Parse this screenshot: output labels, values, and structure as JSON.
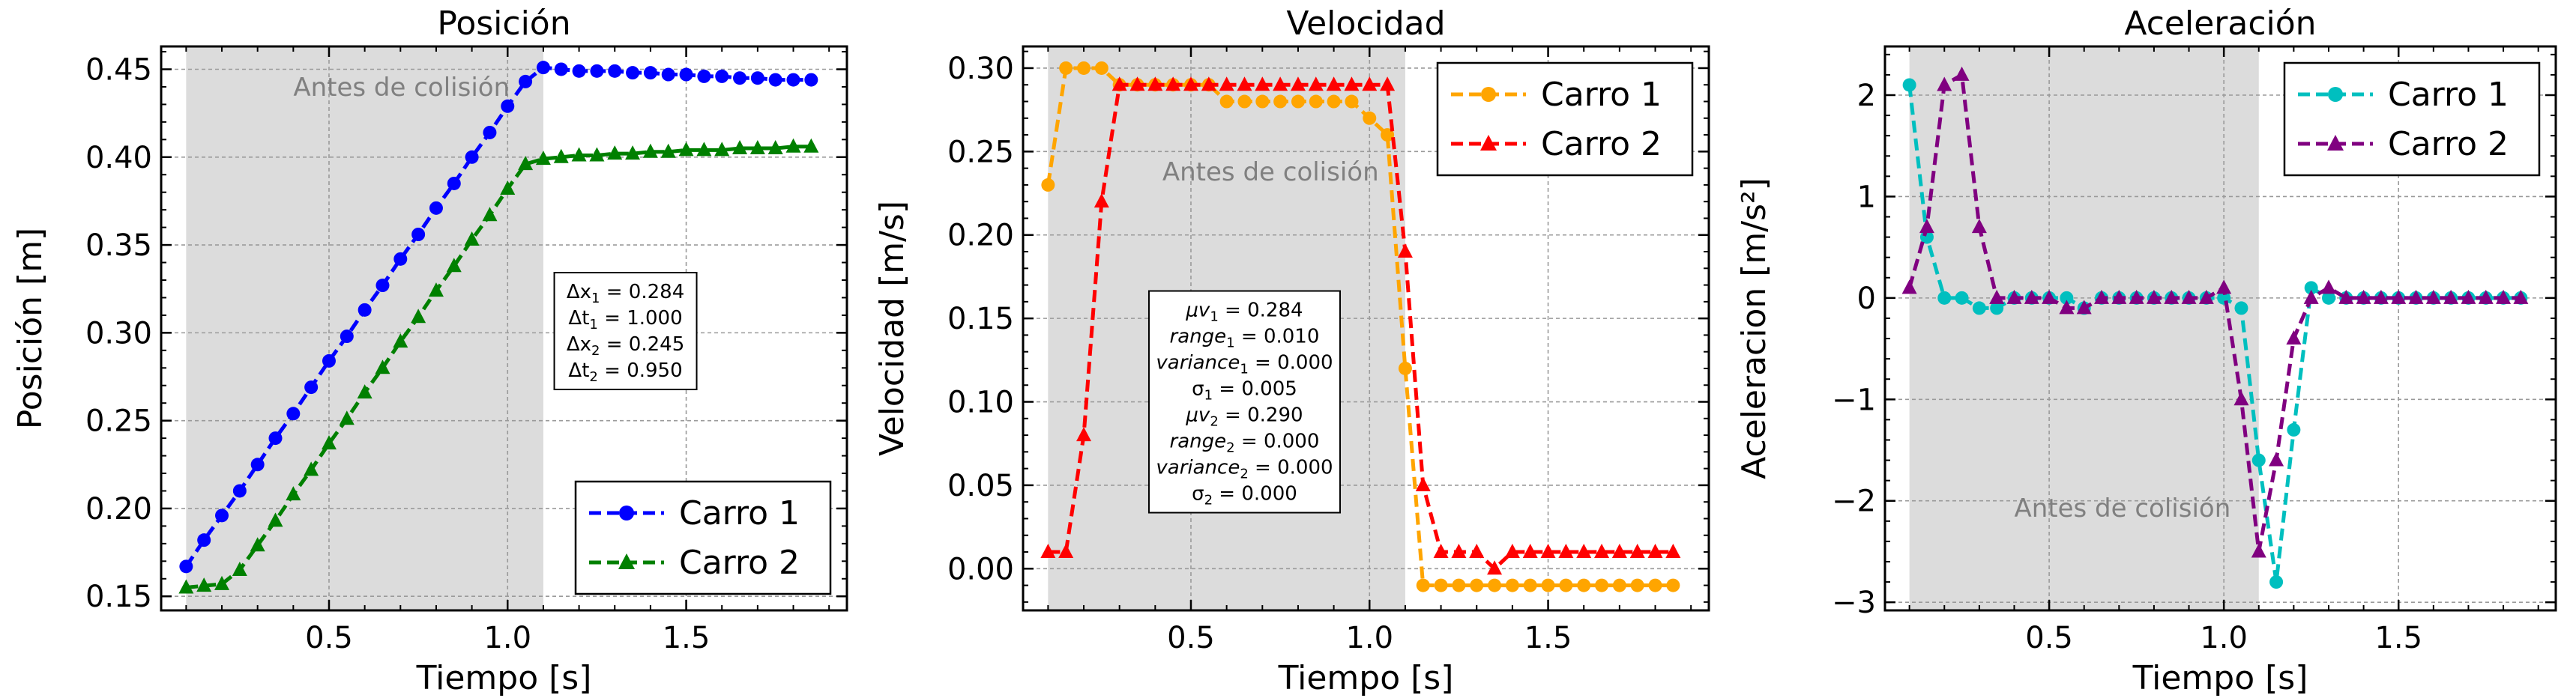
{
  "chart_data": [
    {
      "type": "line",
      "title": "Posición",
      "xlabel": "Tiempo [s]",
      "ylabel": "Posición [m]",
      "xlim": [
        0.03,
        1.95
      ],
      "ylim": [
        0.142,
        0.463
      ],
      "xticks": [
        0.5,
        1.0,
        1.5
      ],
      "xtick_labels": [
        "0.5",
        "1.0",
        "1.5"
      ],
      "yticks": [
        0.15,
        0.2,
        0.25,
        0.3,
        0.35,
        0.4,
        0.45
      ],
      "ytick_labels": [
        "0.15",
        "0.20",
        "0.25",
        "0.30",
        "0.35",
        "0.40",
        "0.45"
      ],
      "grid": true,
      "legend_position": "lower-right",
      "shaded_region": {
        "x0": 0.1,
        "x1": 1.1,
        "label": "Antes de colisión",
        "label_x": 0.4,
        "label_y": 0.44
      },
      "stats_box": {
        "lines": [
          {
            "sym": "Δx",
            "sub": "1",
            "val": "0.284"
          },
          {
            "sym": "Δt",
            "sub": "1",
            "val": "1.000"
          },
          {
            "sym": "Δx",
            "sub": "2",
            "val": "0.245"
          },
          {
            "sym": "Δt",
            "sub": "2",
            "val": "0.950"
          }
        ],
        "cx": 1.33,
        "cy": 0.301
      },
      "series": [
        {
          "name": "Carro 1",
          "color": "#0000ff",
          "marker": "circle",
          "x": [
            0.1,
            0.15,
            0.2,
            0.25,
            0.3,
            0.35,
            0.4,
            0.45,
            0.5,
            0.55,
            0.6,
            0.65,
            0.7,
            0.75,
            0.8,
            0.85,
            0.9,
            0.95,
            1.0,
            1.05,
            1.1,
            1.15,
            1.2,
            1.25,
            1.3,
            1.35,
            1.4,
            1.45,
            1.5,
            1.55,
            1.6,
            1.65,
            1.7,
            1.75,
            1.8,
            1.85
          ],
          "y": [
            0.167,
            0.182,
            0.196,
            0.21,
            0.225,
            0.24,
            0.254,
            0.269,
            0.284,
            0.298,
            0.313,
            0.327,
            0.342,
            0.356,
            0.371,
            0.385,
            0.4,
            0.414,
            0.429,
            0.443,
            0.451,
            0.45,
            0.449,
            0.449,
            0.449,
            0.448,
            0.448,
            0.447,
            0.447,
            0.446,
            0.446,
            0.445,
            0.445,
            0.444,
            0.444,
            0.444
          ]
        },
        {
          "name": "Carro 2",
          "color": "#008000",
          "marker": "triangle",
          "x": [
            0.1,
            0.15,
            0.2,
            0.25,
            0.3,
            0.35,
            0.4,
            0.45,
            0.5,
            0.55,
            0.6,
            0.65,
            0.7,
            0.75,
            0.8,
            0.85,
            0.9,
            0.95,
            1.0,
            1.05,
            1.1,
            1.15,
            1.2,
            1.25,
            1.3,
            1.35,
            1.4,
            1.45,
            1.5,
            1.55,
            1.6,
            1.65,
            1.7,
            1.75,
            1.8,
            1.85
          ],
          "y": [
            0.155,
            0.156,
            0.157,
            0.165,
            0.179,
            0.193,
            0.208,
            0.222,
            0.237,
            0.251,
            0.266,
            0.28,
            0.295,
            0.309,
            0.324,
            0.338,
            0.353,
            0.367,
            0.382,
            0.396,
            0.399,
            0.4,
            0.401,
            0.401,
            0.402,
            0.402,
            0.403,
            0.403,
            0.404,
            0.404,
            0.404,
            0.405,
            0.405,
            0.405,
            0.406,
            0.406
          ]
        }
      ]
    },
    {
      "type": "line",
      "title": "Velocidad",
      "xlabel": "Tiempo [s]",
      "ylabel": "Velocidad [m/s]",
      "xlim": [
        0.03,
        1.95
      ],
      "ylim": [
        -0.025,
        0.313
      ],
      "xticks": [
        0.5,
        1.0,
        1.5
      ],
      "xtick_labels": [
        "0.5",
        "1.0",
        "1.5"
      ],
      "yticks": [
        0.0,
        0.05,
        0.1,
        0.15,
        0.2,
        0.25,
        0.3
      ],
      "ytick_labels": [
        "0.00",
        "0.05",
        "0.10",
        "0.15",
        "0.20",
        "0.25",
        "0.30"
      ],
      "grid": true,
      "legend_position": "upper-right",
      "shaded_region": {
        "x0": 0.1,
        "x1": 1.1,
        "label": "Antes de colisión",
        "label_x": 0.42,
        "label_y": 0.238
      },
      "stats_box": {
        "lines": [
          {
            "sym": "μv",
            "sub": "1",
            "val": "0.284"
          },
          {
            "sym": "range",
            "sub": "1",
            "val": "0.010"
          },
          {
            "sym": "variance",
            "sub": "1",
            "val": "0.000"
          },
          {
            "sym": "σ",
            "sub": "1",
            "val": "0.005"
          },
          {
            "sym": "μv",
            "sub": "2",
            "val": "0.290"
          },
          {
            "sym": "range",
            "sub": "2",
            "val": "0.000"
          },
          {
            "sym": "variance",
            "sub": "2",
            "val": "0.000"
          },
          {
            "sym": "σ",
            "sub": "2",
            "val": "0.000"
          }
        ],
        "cx": 0.65,
        "cy": 0.1
      },
      "series": [
        {
          "name": "Carro 1",
          "color": "#ffa500",
          "marker": "circle",
          "x": [
            0.1,
            0.15,
            0.2,
            0.25,
            0.3,
            0.35,
            0.4,
            0.45,
            0.5,
            0.55,
            0.6,
            0.65,
            0.7,
            0.75,
            0.8,
            0.85,
            0.9,
            0.95,
            1.0,
            1.05,
            1.1,
            1.15,
            1.2,
            1.25,
            1.3,
            1.35,
            1.4,
            1.45,
            1.5,
            1.55,
            1.6,
            1.65,
            1.7,
            1.75,
            1.8,
            1.85
          ],
          "y": [
            0.23,
            0.3,
            0.3,
            0.3,
            0.29,
            0.29,
            0.29,
            0.29,
            0.29,
            0.29,
            0.28,
            0.28,
            0.28,
            0.28,
            0.28,
            0.28,
            0.28,
            0.28,
            0.27,
            0.26,
            0.12,
            -0.01,
            -0.01,
            -0.01,
            -0.01,
            -0.01,
            -0.01,
            -0.01,
            -0.01,
            -0.01,
            -0.01,
            -0.01,
            -0.01,
            -0.01,
            -0.01,
            -0.01
          ]
        },
        {
          "name": "Carro 2",
          "color": "#ff0000",
          "marker": "triangle",
          "x": [
            0.1,
            0.15,
            0.2,
            0.25,
            0.3,
            0.35,
            0.4,
            0.45,
            0.5,
            0.55,
            0.6,
            0.65,
            0.7,
            0.75,
            0.8,
            0.85,
            0.9,
            0.95,
            1.0,
            1.05,
            1.1,
            1.15,
            1.2,
            1.25,
            1.3,
            1.35,
            1.4,
            1.45,
            1.5,
            1.55,
            1.6,
            1.65,
            1.7,
            1.75,
            1.8,
            1.85
          ],
          "y": [
            0.01,
            0.01,
            0.08,
            0.22,
            0.29,
            0.29,
            0.29,
            0.29,
            0.29,
            0.29,
            0.29,
            0.29,
            0.29,
            0.29,
            0.29,
            0.29,
            0.29,
            0.29,
            0.29,
            0.29,
            0.19,
            0.05,
            0.01,
            0.01,
            0.01,
            0.0,
            0.01,
            0.01,
            0.01,
            0.01,
            0.01,
            0.01,
            0.01,
            0.01,
            0.01,
            0.01
          ]
        }
      ]
    },
    {
      "type": "line",
      "title": "Aceleración",
      "xlabel": "Tiempo [s]",
      "ylabel": "Aceleracion [m/s²]",
      "xlim": [
        0.03,
        1.95
      ],
      "ylim": [
        -3.08,
        2.48
      ],
      "xticks": [
        0.5,
        1.0,
        1.5
      ],
      "xtick_labels": [
        "0.5",
        "1.0",
        "1.5"
      ],
      "yticks": [
        -3,
        -2,
        -1,
        0,
        1,
        2
      ],
      "ytick_labels": [
        "−3",
        "−2",
        "−1",
        "0",
        "1",
        "2"
      ],
      "grid": true,
      "legend_position": "upper-right",
      "shaded_region": {
        "x0": 0.1,
        "x1": 1.1,
        "label": "Antes de colisión",
        "label_x": 0.4,
        "label_y": -2.07
      },
      "series": [
        {
          "name": "Carro 1",
          "color": "#00bfbf",
          "marker": "circle",
          "x": [
            0.1,
            0.15,
            0.2,
            0.25,
            0.3,
            0.35,
            0.4,
            0.45,
            0.5,
            0.55,
            0.6,
            0.65,
            0.7,
            0.75,
            0.8,
            0.85,
            0.9,
            0.95,
            1.0,
            1.05,
            1.1,
            1.15,
            1.2,
            1.25,
            1.3,
            1.35,
            1.4,
            1.45,
            1.5,
            1.55,
            1.6,
            1.65,
            1.7,
            1.75,
            1.8,
            1.85
          ],
          "y": [
            2.1,
            0.6,
            0.0,
            0.0,
            -0.1,
            -0.1,
            0.0,
            0.0,
            0.0,
            0.0,
            -0.1,
            0.0,
            0.0,
            0.0,
            0.0,
            0.0,
            0.0,
            0.0,
            0.0,
            -0.1,
            -1.6,
            -2.8,
            -1.3,
            0.1,
            0.0,
            0.0,
            0.0,
            0.0,
            0.0,
            0.0,
            0.0,
            0.0,
            0.0,
            0.0,
            0.0,
            0.0
          ]
        },
        {
          "name": "Carro 2",
          "color": "#800080",
          "marker": "triangle",
          "x": [
            0.1,
            0.15,
            0.2,
            0.25,
            0.3,
            0.35,
            0.4,
            0.45,
            0.5,
            0.55,
            0.6,
            0.65,
            0.7,
            0.75,
            0.8,
            0.85,
            0.9,
            0.95,
            1.0,
            1.05,
            1.1,
            1.15,
            1.2,
            1.25,
            1.3,
            1.35,
            1.4,
            1.45,
            1.5,
            1.55,
            1.6,
            1.65,
            1.7,
            1.75,
            1.8,
            1.85
          ],
          "y": [
            0.1,
            0.7,
            2.1,
            2.2,
            0.7,
            0.0,
            0.0,
            0.0,
            0.0,
            -0.1,
            -0.1,
            0.0,
            0.0,
            0.0,
            0.0,
            0.0,
            0.0,
            0.0,
            0.1,
            -1.0,
            -2.5,
            -1.6,
            -0.4,
            0.0,
            0.1,
            0.0,
            0.0,
            0.0,
            0.0,
            0.0,
            0.0,
            0.0,
            0.0,
            0.0,
            0.0,
            0.0
          ]
        }
      ]
    }
  ]
}
